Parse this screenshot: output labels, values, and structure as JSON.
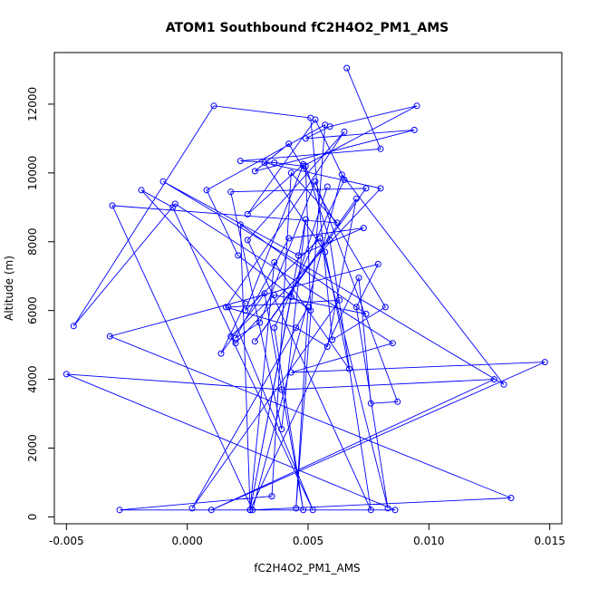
{
  "chart_data": {
    "type": "line",
    "title": "ATOM1 Southbound fC2H4O2_PM1_AMS",
    "xlabel": "fC2H4O2_PM1_AMS",
    "ylabel": "Altitude (m)",
    "xlim": [
      -0.0055,
      0.0155
    ],
    "ylim": [
      -200,
      13500
    ],
    "xticks": [
      -0.005,
      0.0,
      0.005,
      0.01,
      0.015
    ],
    "xtick_labels": [
      "-0.005",
      "0.000",
      "0.005",
      "0.010",
      "0.015"
    ],
    "yticks": [
      0,
      2000,
      4000,
      6000,
      8000,
      10000,
      12000
    ],
    "ytick_labels": [
      "0",
      "2000",
      "4000",
      "6000",
      "8000",
      "10000",
      "12000"
    ],
    "grid": false,
    "color": "#0000ff",
    "marker": "open-circle",
    "series": [
      {
        "x": [
          0.0066,
          0.008,
          0.0022,
          0.0036,
          0.0048,
          0.0095,
          0.0059,
          0.0049,
          0.0094,
          0.0028,
          0.0042,
          0.0082,
          0.006,
          0.0051,
          0.0011,
          -0.0047,
          -0.0005,
          0.0085,
          0.0043,
          0.0148,
          0.001,
          0.0127,
          0.0039,
          -0.005,
          0.0086,
          -0.0028,
          0.0035,
          0.0043,
          0.0062,
          -0.0031,
          0.0027,
          0.0064,
          0.0131,
          -0.001,
          0.0046,
          0.0073,
          0.0042,
          0.002,
          0.003,
          0.0053,
          0.0087,
          0.0076,
          0.0071,
          0.0026,
          0.0134,
          -0.0032,
          0.0079,
          0.007,
          0.0083,
          0.0055,
          0.0024,
          0.0048,
          0.0025,
          0.0053,
          0.0065,
          0.0036,
          0.0048,
          0.0032,
          0.0014,
          0.0024,
          -0.0019,
          -0.0006,
          0.002,
          0.008,
          0.0032,
          0.0057,
          0.0067,
          0.0036,
          0.0026,
          0.0049,
          0.0039,
          0.0018,
          0.0074,
          0.0028,
          0.007,
          0.0058,
          0.0045,
          0.0016,
          0.0065,
          0.0025,
          0.0076,
          0.0059,
          0.0049,
          0.0051,
          0.0021,
          0.0008,
          0.0057,
          0.0045,
          0.005,
          0.0002,
          0.0063,
          0.0017,
          0.0052,
          0.0018,
          0.0036,
          0.0074,
          0.0022,
          0.0026,
          0.0043,
          0.0058
        ],
        "y": [
          13050,
          10700,
          10350,
          10300,
          10200,
          11950,
          11350,
          11000,
          11250,
          10050,
          10850,
          6100,
          5150,
          11600,
          11950,
          5550,
          9100,
          5050,
          4200,
          4500,
          200,
          4000,
          3700,
          4150,
          200,
          200,
          600,
          10000,
          8550,
          9050,
          200,
          9950,
          3850,
          9750,
          7600,
          8400,
          8100,
          5200,
          5650,
          9750,
          3350,
          3300,
          6950,
          200,
          550,
          5250,
          7350,
          6100,
          250,
          8100,
          6000,
          10250,
          8800,
          11550,
          9800,
          5500,
          200,
          6500,
          4750,
          6200,
          9500,
          9000,
          5050,
          9550,
          10300,
          7700,
          4300,
          7400,
          200,
          8650,
          2550,
          9450,
          9550,
          5100,
          9250,
          4950,
          5500,
          6100,
          11200,
          8050,
          200,
          8050,
          10200,
          6000,
          7600,
          9500,
          11400,
          250,
          6100,
          250,
          6300,
          6100,
          200,
          5250,
          6450,
          5900,
          8500,
          200,
          6400,
          9600
        ]
      }
    ]
  }
}
